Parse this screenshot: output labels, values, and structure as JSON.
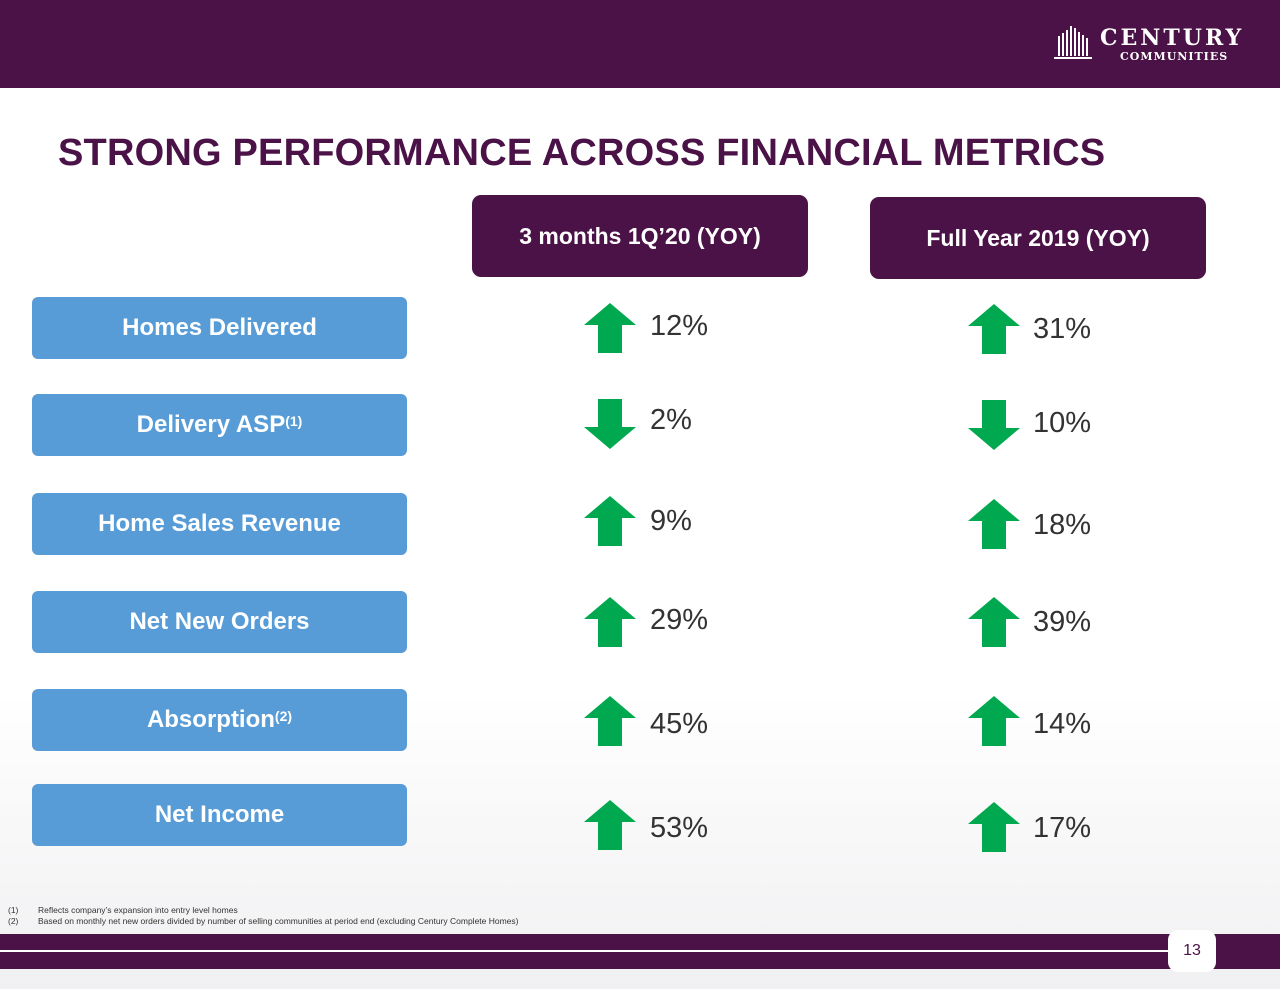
{
  "logo": {
    "name": "CENTURY",
    "sub": "COMMUNITIES"
  },
  "title": "STRONG PERFORMANCE ACROSS FINANCIAL METRICS",
  "columns": [
    "3 months 1Q’20 (YOY)",
    "Full Year 2019 (YOY)"
  ],
  "rows": [
    {
      "label": "Homes Delivered",
      "sup": "",
      "q": "12%",
      "q_dir": "up",
      "fy": "31%",
      "fy_dir": "up"
    },
    {
      "label": "Delivery ASP",
      "sup": "(1)",
      "q": "2%",
      "q_dir": "down",
      "fy": "10%",
      "fy_dir": "down"
    },
    {
      "label": "Home Sales Revenue",
      "sup": "",
      "q": "9%",
      "q_dir": "up",
      "fy": "18%",
      "fy_dir": "up"
    },
    {
      "label": "Net New Orders",
      "sup": "",
      "q": "29%",
      "q_dir": "up",
      "fy": "39%",
      "fy_dir": "up"
    },
    {
      "label": "Absorption",
      "sup": "(2)",
      "q": "45%",
      "q_dir": "up",
      "fy": "14%",
      "fy_dir": "up"
    },
    {
      "label": "Net Income",
      "sup": "",
      "q": "53%",
      "q_dir": "up",
      "fy": "17%",
      "fy_dir": "up"
    }
  ],
  "footnotes": [
    {
      "num": "(1)",
      "text": "Reflects company’s expansion into entry level homes"
    },
    {
      "num": "(2)",
      "text": "Based on monthly net new orders divided by number of selling communities at period end (excluding Century Complete Homes)"
    }
  ],
  "page_number": "13",
  "colors": {
    "purple": "#4a1247",
    "metric_blue": "#579cd6",
    "arrow_green": "#00a94f"
  }
}
